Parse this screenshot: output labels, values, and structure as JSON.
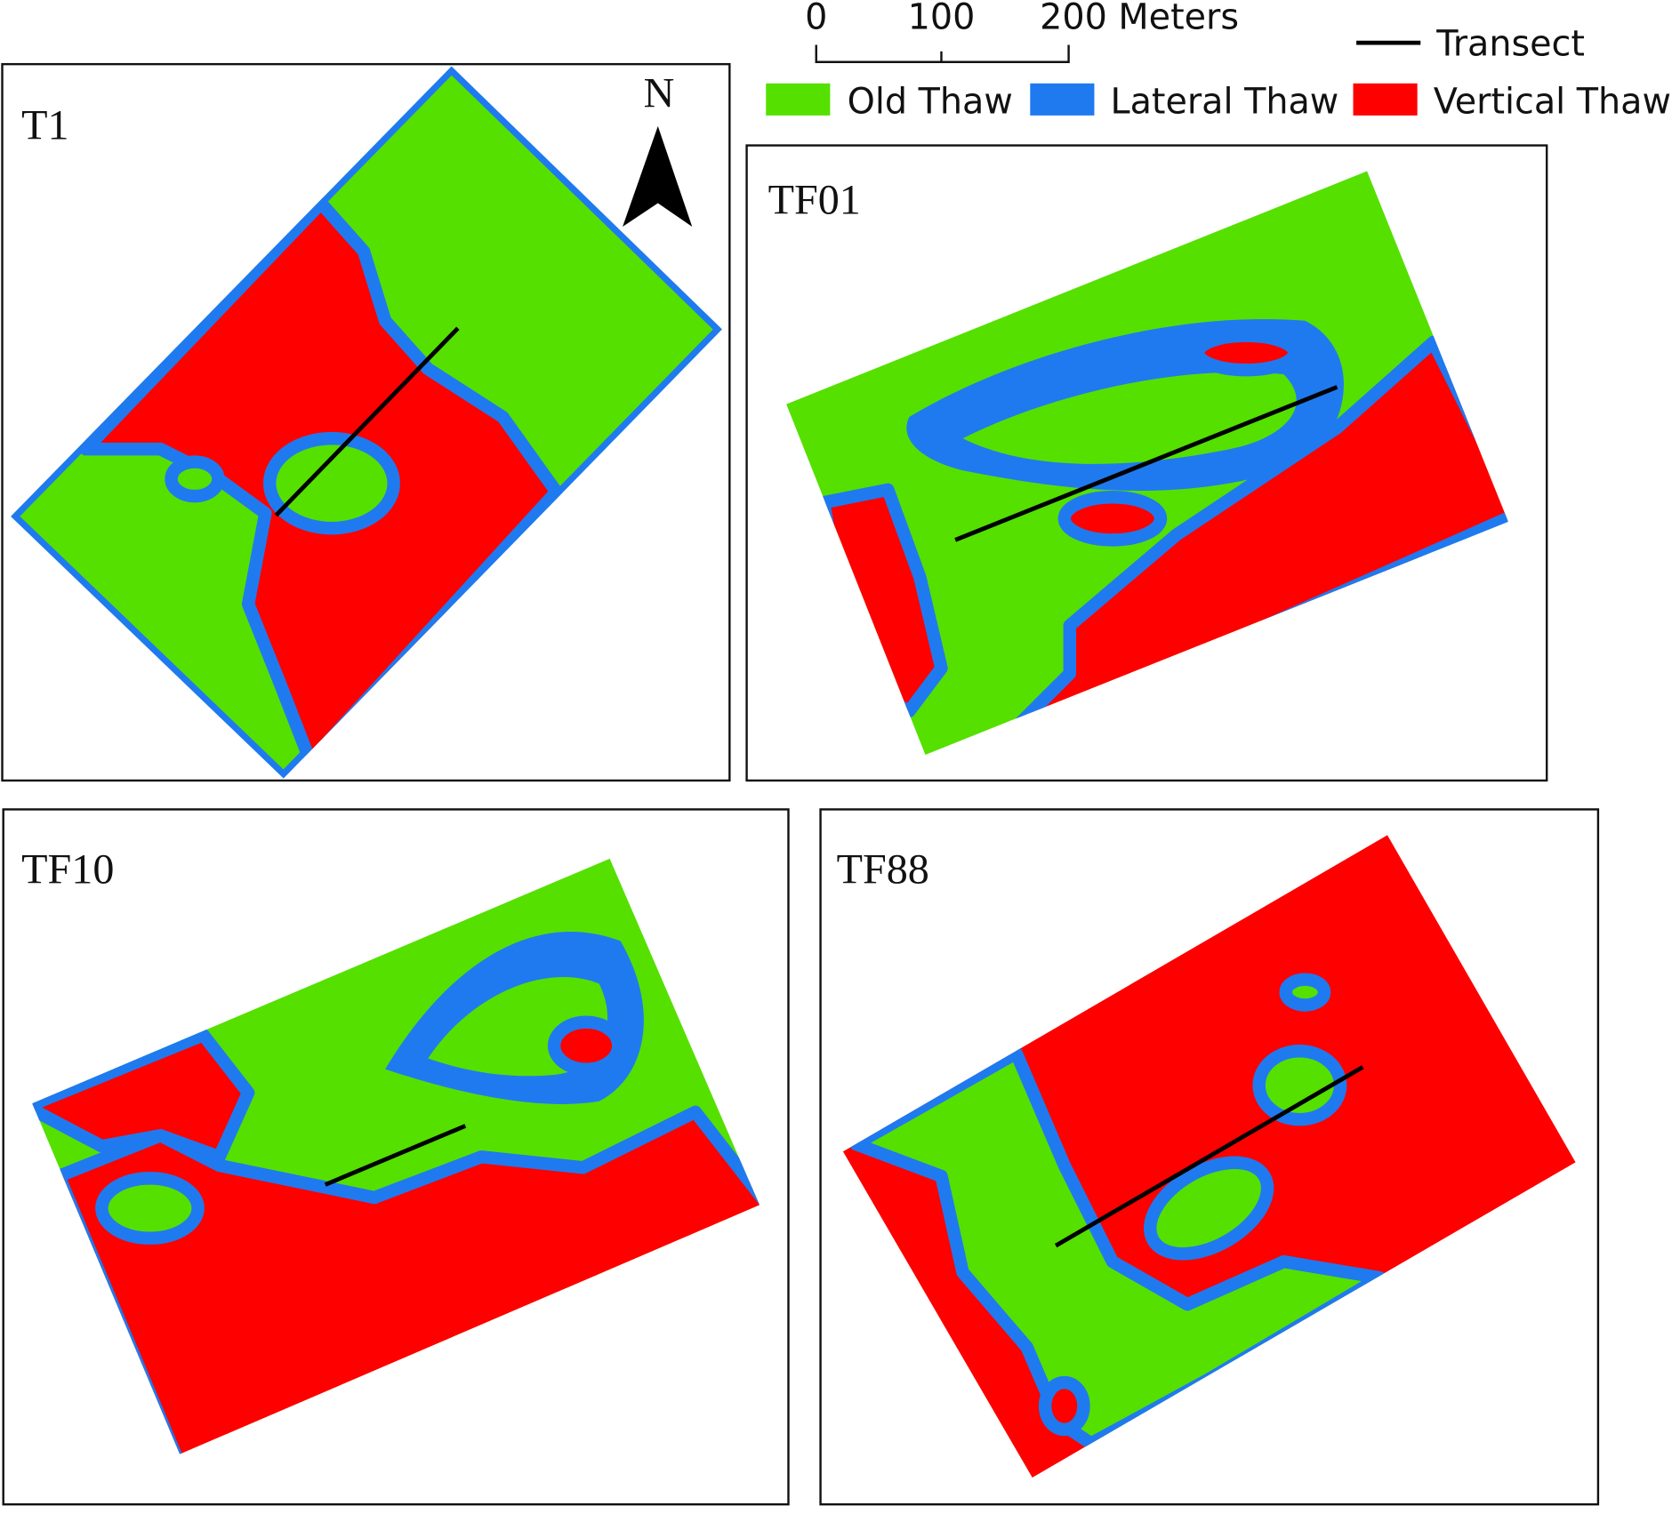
{
  "scale_bar": {
    "labels": [
      "0",
      "100",
      "200 Meters"
    ]
  },
  "legend": {
    "transect": "Transect",
    "items": [
      {
        "label": "Old Thaw",
        "color": "#55e000"
      },
      {
        "label": "Lateral Thaw",
        "color": "#1f7af0"
      },
      {
        "label": "Vertical Thaw",
        "color": "#ff0000"
      }
    ]
  },
  "north_arrow": "N",
  "panels": [
    "T1",
    "TF01",
    "TF10",
    "TF88"
  ]
}
